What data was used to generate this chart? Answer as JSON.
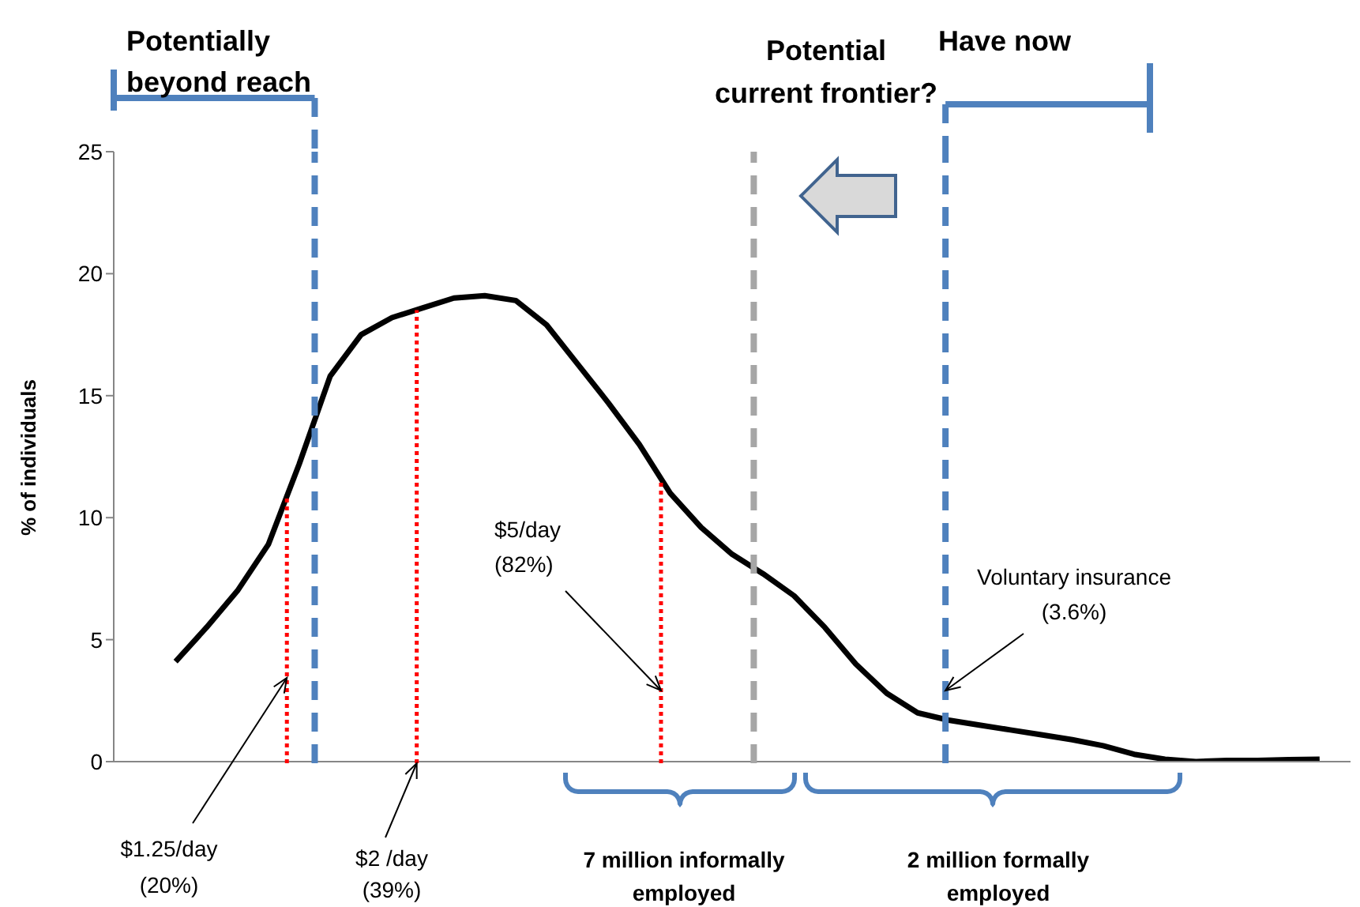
{
  "chart_data": {
    "type": "line",
    "ylabel": "% of individuals",
    "categories": [
      null,
      null,
      null,
      null,
      null,
      null,
      null,
      null,
      null,
      null,
      null,
      null,
      null,
      null,
      null,
      null,
      null,
      null,
      null,
      null,
      null,
      null,
      null,
      null,
      null,
      null,
      null,
      null,
      null,
      null,
      null,
      null,
      null,
      null,
      null,
      null,
      null,
      null,
      null,
      null,
      null
    ],
    "ylim": [
      0,
      25
    ],
    "yticks": [
      0,
      5,
      10,
      15,
      20,
      25
    ],
    "marker": "none",
    "series": [
      {
        "color": "#000000",
        "values": [
          null,
          null,
          4.1,
          5.5,
          7,
          8.9,
          12.2,
          15.8,
          17.5,
          18.2,
          18.6,
          19,
          19.1,
          18.9,
          17.9,
          16.3,
          14.7,
          13,
          11,
          9.6,
          8.5,
          7.7,
          6.8,
          5.5,
          4,
          2.8,
          2,
          1.7,
          1.5,
          1.3,
          1.1,
          0.9,
          0.65,
          0.3,
          0.1,
          0,
          0.05,
          0.05,
          0.08,
          0.1,
          null
        ]
      }
    ],
    "annotations": [
      "Potentially beyond reach",
      "Potential current frontier?",
      "Have now",
      "$1.25/day (20%)",
      "$2 /day (39%)",
      "$5/day (82%)",
      "Voluntary insurance (3.6%)",
      "7 million informally employed",
      "2 million formally employed"
    ]
  }
}
